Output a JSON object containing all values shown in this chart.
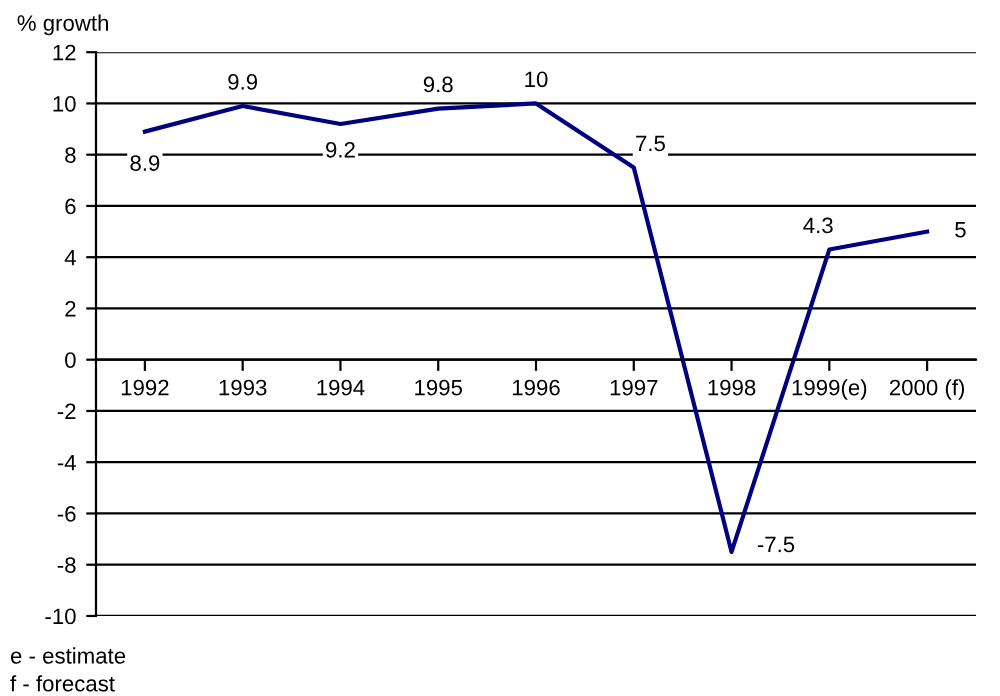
{
  "chart_data": {
    "type": "line",
    "ylabel": "% growth",
    "categories": [
      "1992",
      "1993",
      "1994",
      "1995",
      "1996",
      "1997",
      "1998",
      "1999(e)",
      "2000 (f)"
    ],
    "series": [
      {
        "color": "#000080",
        "values": [
          8.9,
          9.9,
          9.2,
          9.8,
          10,
          7.5,
          -7.5,
          4.3,
          5
        ]
      }
    ],
    "ylim": [
      -10,
      12
    ],
    "yticks": [
      -10,
      -8,
      -6,
      -4,
      -2,
      0,
      2,
      4,
      6,
      8,
      10,
      12
    ],
    "grid": "y",
    "data_labels": true,
    "marker": "none",
    "line_style": "solid",
    "annotations": [
      "e - estimate",
      "f - forecast"
    ]
  }
}
